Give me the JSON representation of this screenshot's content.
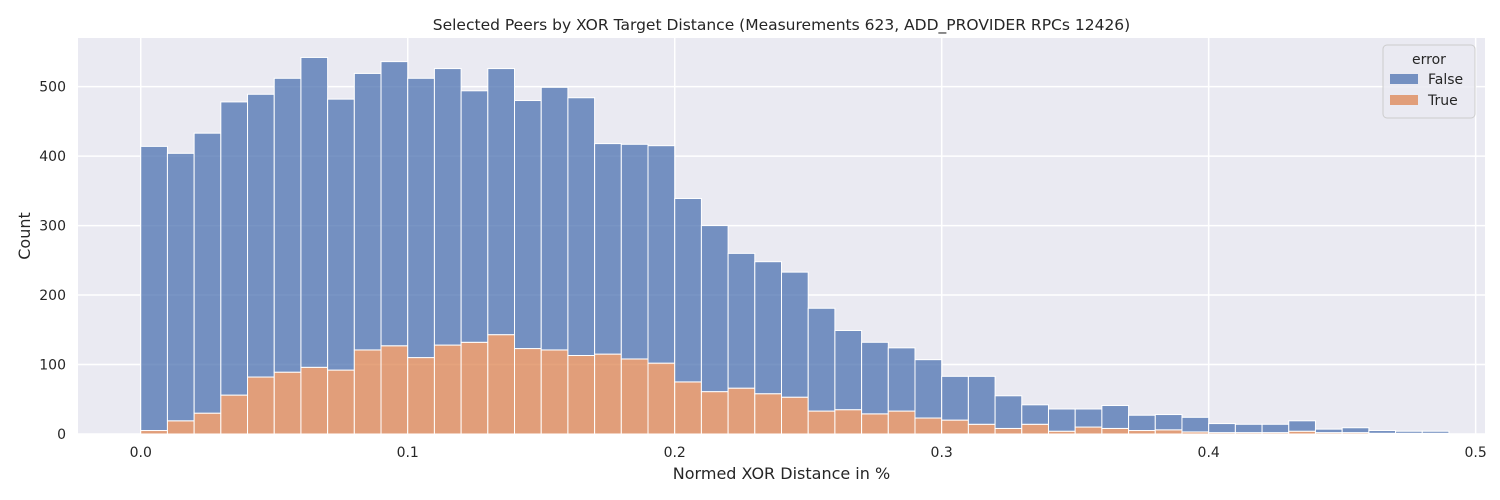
{
  "chart_data": {
    "type": "bar",
    "subtype": "stacked-histogram",
    "title": "Selected Peers by XOR Target Distance (Measurements 623, ADD_PROVIDER RPCs 12426)",
    "xlabel": "Normed XOR Distance in %",
    "ylabel": "Count",
    "xlim": [
      -0.0235,
      0.5035
    ],
    "ylim": [
      0,
      570
    ],
    "xticks": [
      0.0,
      0.1,
      0.2,
      0.3,
      0.4,
      0.5
    ],
    "xtick_labels": [
      "0.0",
      "0.1",
      "0.2",
      "0.3",
      "0.4",
      "0.5"
    ],
    "yticks": [
      0,
      100,
      200,
      300,
      400,
      500
    ],
    "ytick_labels": [
      "0",
      "100",
      "200",
      "300",
      "400",
      "500"
    ],
    "grid": true,
    "bin_width": 0.01,
    "bin_start": 0.0,
    "legend": {
      "title": "error",
      "placement": "top-right"
    },
    "series": [
      {
        "name": "False",
        "color": "#4c72b0",
        "values": [
          409,
          385,
          403,
          422,
          407,
          423,
          446,
          390,
          398,
          409,
          402,
          398,
          362,
          383,
          357,
          378,
          371,
          303,
          309,
          313,
          264,
          239,
          194,
          190,
          180,
          148,
          114,
          103,
          91,
          84,
          63,
          69,
          47,
          28,
          32,
          26,
          33,
          22,
          22,
          21,
          13,
          12,
          12,
          15,
          5,
          7,
          4,
          3,
          3,
          0
        ]
      },
      {
        "name": "True",
        "color": "#dd8452",
        "values": [
          5,
          19,
          30,
          56,
          82,
          89,
          96,
          92,
          121,
          127,
          110,
          128,
          132,
          143,
          123,
          121,
          113,
          115,
          108,
          102,
          75,
          61,
          66,
          58,
          53,
          33,
          35,
          29,
          33,
          23,
          20,
          14,
          8,
          14,
          4,
          10,
          8,
          5,
          6,
          3,
          2,
          2,
          2,
          4,
          2,
          2,
          1,
          1,
          1,
          0
        ]
      }
    ]
  }
}
